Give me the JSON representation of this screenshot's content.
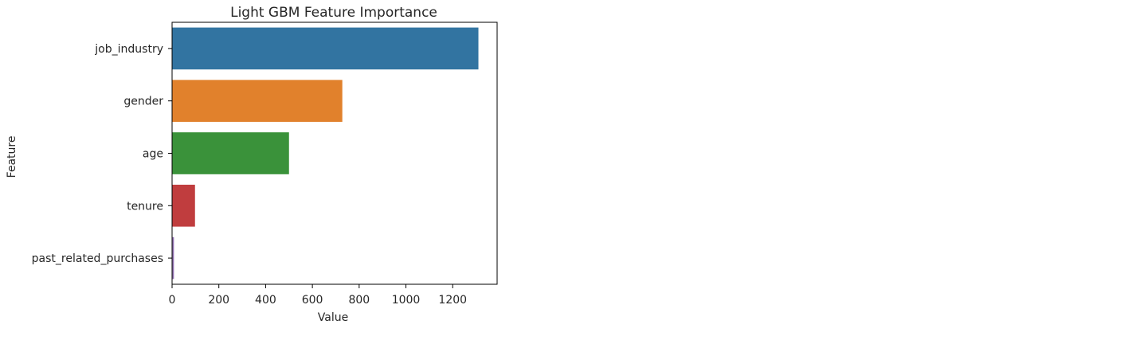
{
  "chart_data": {
    "type": "bar",
    "orientation": "horizontal",
    "title": "Light GBM Feature Importance",
    "xlabel": "Value",
    "ylabel": "Feature",
    "categories": [
      "job_industry",
      "gender",
      "age",
      "tenure",
      "past_related_purchases"
    ],
    "values": [
      1310,
      728,
      500,
      98,
      8
    ],
    "colors": [
      "#3274a1",
      "#e1812c",
      "#3a923a",
      "#c03d3e",
      "#9372b2"
    ],
    "xlim": [
      0,
      1390
    ],
    "xticks": [
      0,
      200,
      400,
      600,
      800,
      1000,
      1200
    ],
    "xtick_labels": [
      "0",
      "200",
      "400",
      "600",
      "800",
      "1000",
      "1200"
    ],
    "grid": false,
    "legend": "none"
  }
}
